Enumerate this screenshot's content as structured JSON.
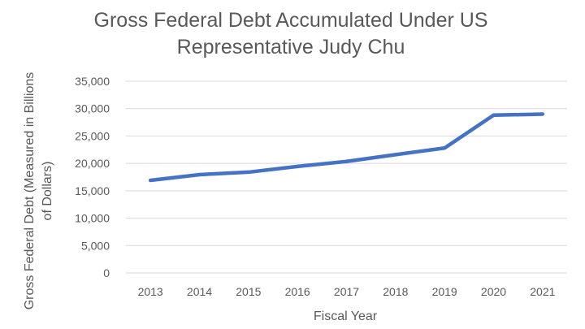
{
  "chart_data": {
    "type": "line",
    "title_lines": [
      "Gross Federal Debt Accumulated Under US",
      "Representative Judy Chu"
    ],
    "xlabel": "Fiscal Year",
    "ylabel_lines": [
      "Gross Federal Debt (Measured in Billions",
      "of Dollars)"
    ],
    "categories": [
      "2013",
      "2014",
      "2015",
      "2016",
      "2017",
      "2018",
      "2019",
      "2020",
      "2021"
    ],
    "yticks": [
      "0",
      "5,000",
      "10,000",
      "15,000",
      "20,000",
      "25,000",
      "30,000",
      "35,000"
    ],
    "ylim": [
      0,
      35000
    ],
    "series": [
      {
        "values": [
          16900,
          17950,
          18400,
          19450,
          20350,
          21600,
          22800,
          28800,
          29000
        ],
        "color": "#4472C4"
      }
    ],
    "grid": "horizontal",
    "legend": "none"
  },
  "colors": {
    "line": "#4472C4",
    "grid": "#d9d9d9",
    "text": "#595959"
  }
}
